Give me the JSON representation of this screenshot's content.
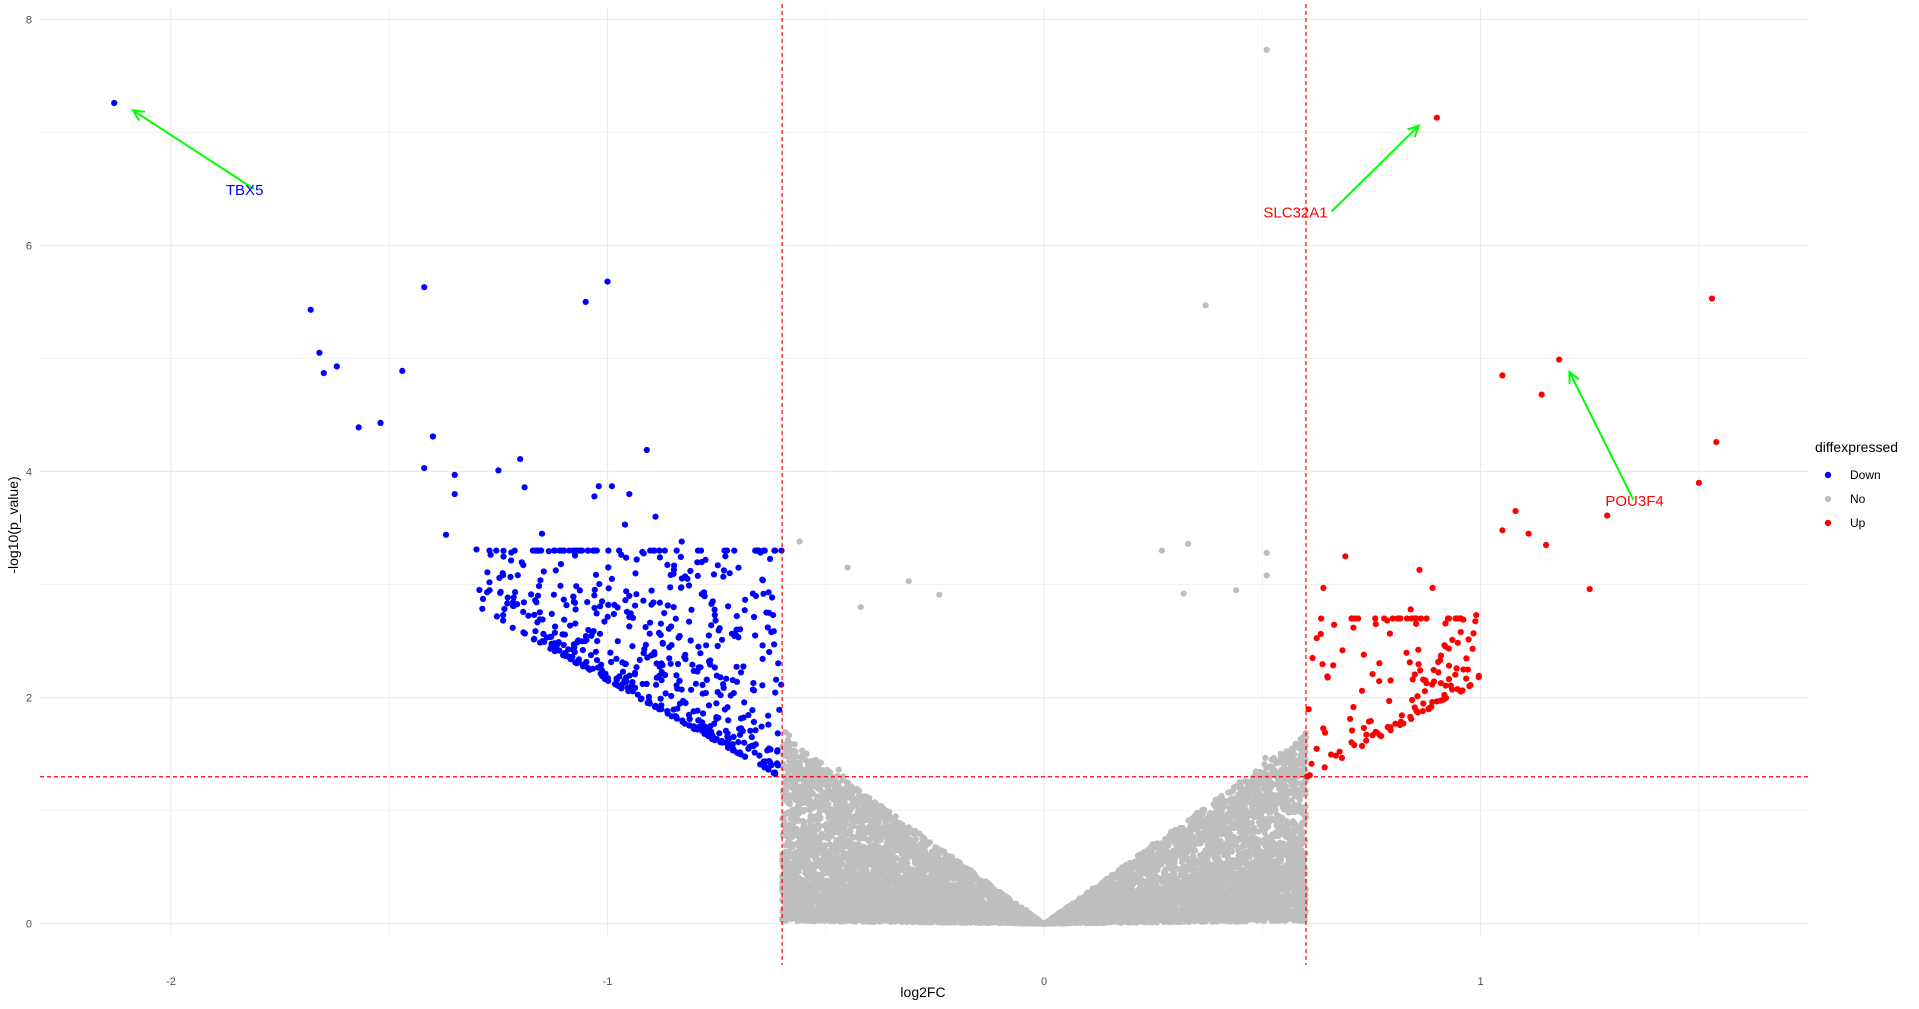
{
  "chart_data": {
    "type": "scatter",
    "title": "",
    "xlabel": "log2FC",
    "ylabel": "-log10(p_value)",
    "xlim": [
      -2.3,
      1.75
    ],
    "ylim": [
      -0.1,
      8.1
    ],
    "x_ticks": [
      -2,
      -1,
      0,
      1
    ],
    "y_ticks": [
      0,
      2,
      4,
      6,
      8
    ],
    "x_tick_labels": [
      "-2",
      "-1",
      "0",
      "1"
    ],
    "y_tick_labels": [
      "0",
      "2",
      "4",
      "6",
      "8"
    ],
    "grid": true,
    "thresholds": {
      "log2fc": [
        -0.6,
        0.6
      ],
      "neg_log10_p": 1.3,
      "line_color": "#ff0000"
    },
    "legend": {
      "title": "diffexpressed",
      "position": "right",
      "entries": [
        {
          "label": "Down",
          "color": "#0000ff"
        },
        {
          "label": "No",
          "color": "#bebebe"
        },
        {
          "label": "Up",
          "color": "#ff0000"
        }
      ]
    },
    "series": [
      {
        "name": "Down",
        "color": "#0000ff",
        "points": [
          [
            -2.13,
            7.26
          ],
          [
            -1.68,
            5.43
          ],
          [
            -1.42,
            5.63
          ],
          [
            -1.0,
            5.68
          ],
          [
            -1.05,
            5.5
          ],
          [
            -1.66,
            5.05
          ],
          [
            -1.62,
            4.93
          ],
          [
            -1.65,
            4.87
          ],
          [
            -1.47,
            4.89
          ],
          [
            -1.57,
            4.39
          ],
          [
            -1.52,
            4.43
          ],
          [
            -1.4,
            4.31
          ],
          [
            -0.91,
            4.19
          ],
          [
            -1.2,
            4.11
          ],
          [
            -1.25,
            4.01
          ],
          [
            -1.42,
            4.03
          ],
          [
            -1.35,
            3.97
          ],
          [
            -1.02,
            3.87
          ],
          [
            -0.99,
            3.87
          ],
          [
            -1.19,
            3.86
          ],
          [
            -1.35,
            3.8
          ],
          [
            -0.95,
            3.8
          ],
          [
            -1.03,
            3.78
          ],
          [
            -0.89,
            3.6
          ],
          [
            -0.96,
            3.53
          ],
          [
            -1.37,
            3.44
          ],
          [
            -1.15,
            3.45
          ],
          [
            -0.83,
            3.38
          ],
          [
            -1.3,
            3.31
          ],
          [
            -0.64,
            3.3
          ],
          [
            -0.73,
            3.25
          ],
          [
            -0.88,
            3.24
          ],
          [
            -0.81,
            3.12
          ],
          [
            -0.72,
            3.1
          ],
          [
            -1.24,
            3.1
          ],
          [
            -0.99,
            3.05
          ],
          [
            -0.66,
            2.9
          ],
          [
            -0.63,
            2.75
          ],
          [
            -1.27,
            2.95
          ],
          [
            -0.95,
            2.9
          ]
        ],
        "cloud": {
          "count": 560,
          "x_range": [
            -1.3,
            -0.6
          ],
          "neg_log10_p_range": [
            1.3,
            3.3
          ]
        }
      },
      {
        "name": "No",
        "color": "#bebebe",
        "points": [
          [
            0.51,
            7.73
          ],
          [
            0.37,
            5.47
          ],
          [
            -0.56,
            3.38
          ],
          [
            0.33,
            3.36
          ],
          [
            0.27,
            3.3
          ],
          [
            0.51,
            3.28
          ],
          [
            -0.45,
            3.15
          ],
          [
            0.51,
            3.08
          ],
          [
            -0.31,
            3.03
          ],
          [
            -0.24,
            2.91
          ],
          [
            0.32,
            2.92
          ],
          [
            0.44,
            2.95
          ],
          [
            -0.42,
            2.8
          ]
        ],
        "cloud": {
          "count": 9000,
          "x_range": [
            -0.6,
            0.6
          ],
          "neg_log10_p_range": [
            0,
            2.3
          ]
        }
      },
      {
        "name": "Up",
        "color": "#ff0000",
        "points": [
          [
            0.9,
            7.13
          ],
          [
            1.53,
            5.53
          ],
          [
            1.18,
            4.99
          ],
          [
            1.05,
            4.85
          ],
          [
            1.14,
            4.68
          ],
          [
            1.54,
            4.26
          ],
          [
            1.5,
            3.9
          ],
          [
            1.08,
            3.65
          ],
          [
            1.29,
            3.61
          ],
          [
            1.05,
            3.48
          ],
          [
            1.11,
            3.45
          ],
          [
            1.15,
            3.35
          ],
          [
            0.69,
            3.25
          ],
          [
            0.86,
            3.13
          ],
          [
            1.25,
            2.96
          ],
          [
            0.64,
            2.97
          ],
          [
            0.89,
            2.97
          ],
          [
            0.84,
            2.78
          ],
          [
            0.76,
            2.65
          ],
          [
            0.99,
            2.73
          ]
        ],
        "cloud": {
          "count": 150,
          "x_range": [
            0.6,
            1.0
          ],
          "neg_log10_p_range": [
            1.3,
            2.7
          ]
        }
      }
    ],
    "annotations": [
      {
        "text": "TBX5",
        "target": [
          -2.13,
          7.26
        ],
        "text_pos": [
          -1.81,
          6.5
        ],
        "text_color": "#0000ff",
        "arrow_color": "#00ff00"
      },
      {
        "text": "SLC32A1",
        "target": [
          0.9,
          7.13
        ],
        "text_pos": [
          0.59,
          6.3
        ],
        "text_color": "#ff0000",
        "arrow_color": "#00ff00"
      },
      {
        "text": "POU3F4",
        "target": [
          1.18,
          4.99
        ],
        "text_pos": [
          1.35,
          3.75
        ],
        "text_color": "#ff0000",
        "arrow_color": "#00ff00"
      }
    ]
  }
}
